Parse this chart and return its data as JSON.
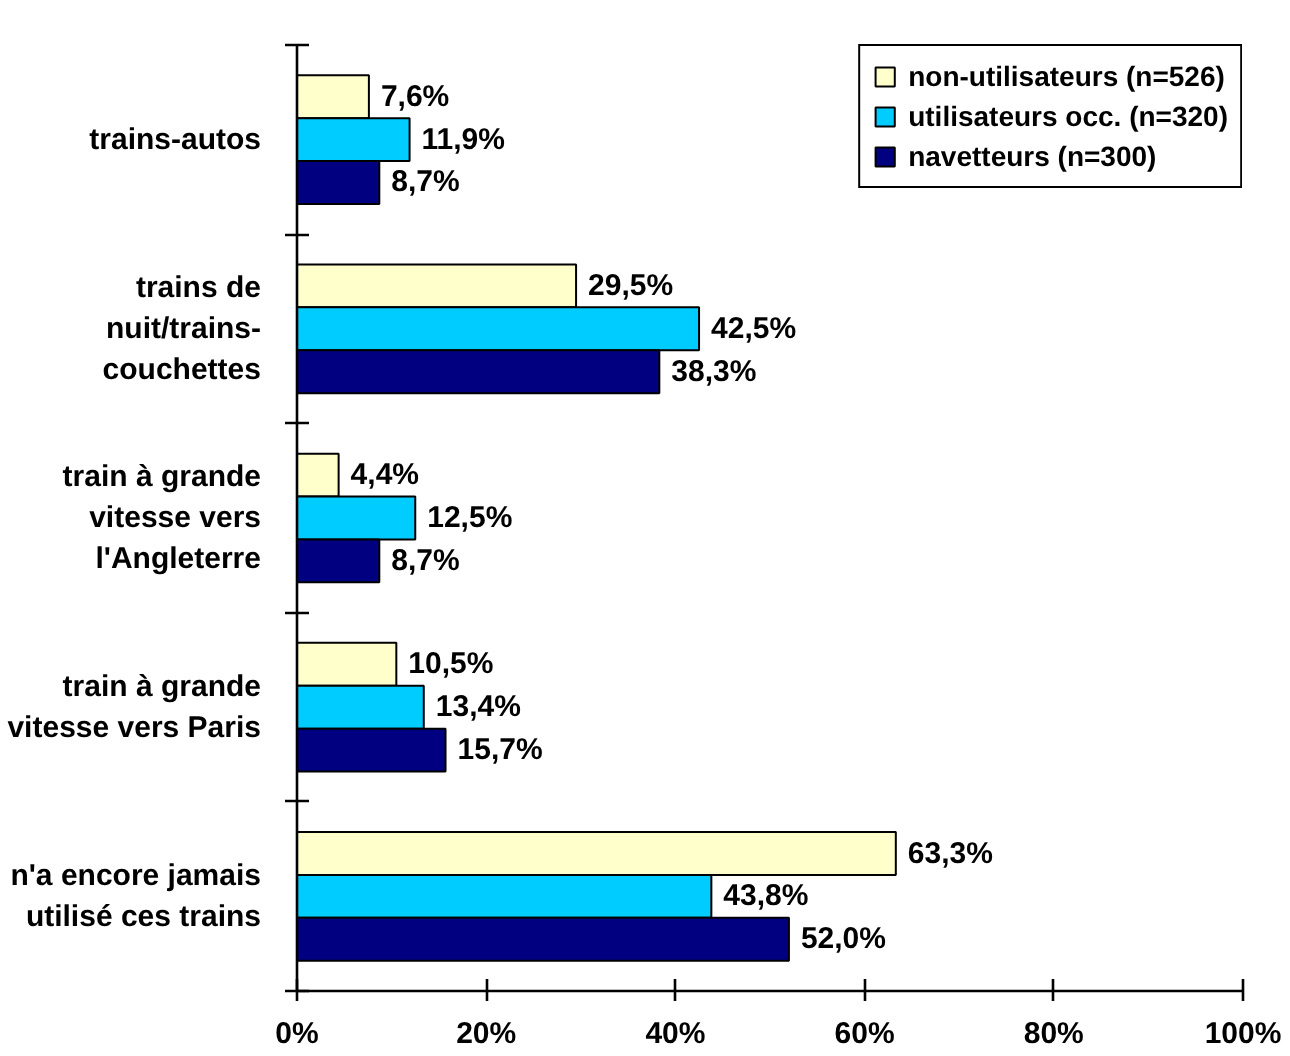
{
  "chart_data": {
    "type": "bar",
    "orientation": "horizontal",
    "categories": [
      "trains-autos",
      "trains de\nnuit/trains-\ncouchettes",
      "train à grande\nvitesse vers\nl'Angleterre",
      "train à grande\nvitesse vers Paris",
      "n'a encore jamais\nutilisé ces trains"
    ],
    "series": [
      {
        "name": "non-utilisateurs (n=526)",
        "color": "#ffffcc",
        "values": [
          7.6,
          29.5,
          4.4,
          10.5,
          63.3
        ],
        "value_labels": [
          "7,6%",
          "29,5%",
          "4,4%",
          "10,5%",
          "63,3%"
        ]
      },
      {
        "name": "utilisateurs occ. (n=320)",
        "color": "#00ccff",
        "values": [
          11.9,
          42.5,
          12.5,
          13.4,
          43.8
        ],
        "value_labels": [
          "11,9%",
          "42,5%",
          "12,5%",
          "13,4%",
          "43,8%"
        ]
      },
      {
        "name": "navetteurs (n=300)",
        "color": "#000080",
        "values": [
          8.7,
          38.3,
          8.7,
          15.7,
          52.0
        ],
        "value_labels": [
          "8,7%",
          "38,3%",
          "8,7%",
          "15,7%",
          "52,0%"
        ]
      }
    ],
    "xlim": [
      0,
      100
    ],
    "xticks": [
      {
        "value": 0,
        "label": "0%"
      },
      {
        "value": 20,
        "label": "20%"
      },
      {
        "value": 40,
        "label": "40%"
      },
      {
        "value": 60,
        "label": "60%"
      },
      {
        "value": 80,
        "label": "80%"
      },
      {
        "value": 100,
        "label": "100%"
      }
    ],
    "grid": false,
    "legend": "top right"
  }
}
